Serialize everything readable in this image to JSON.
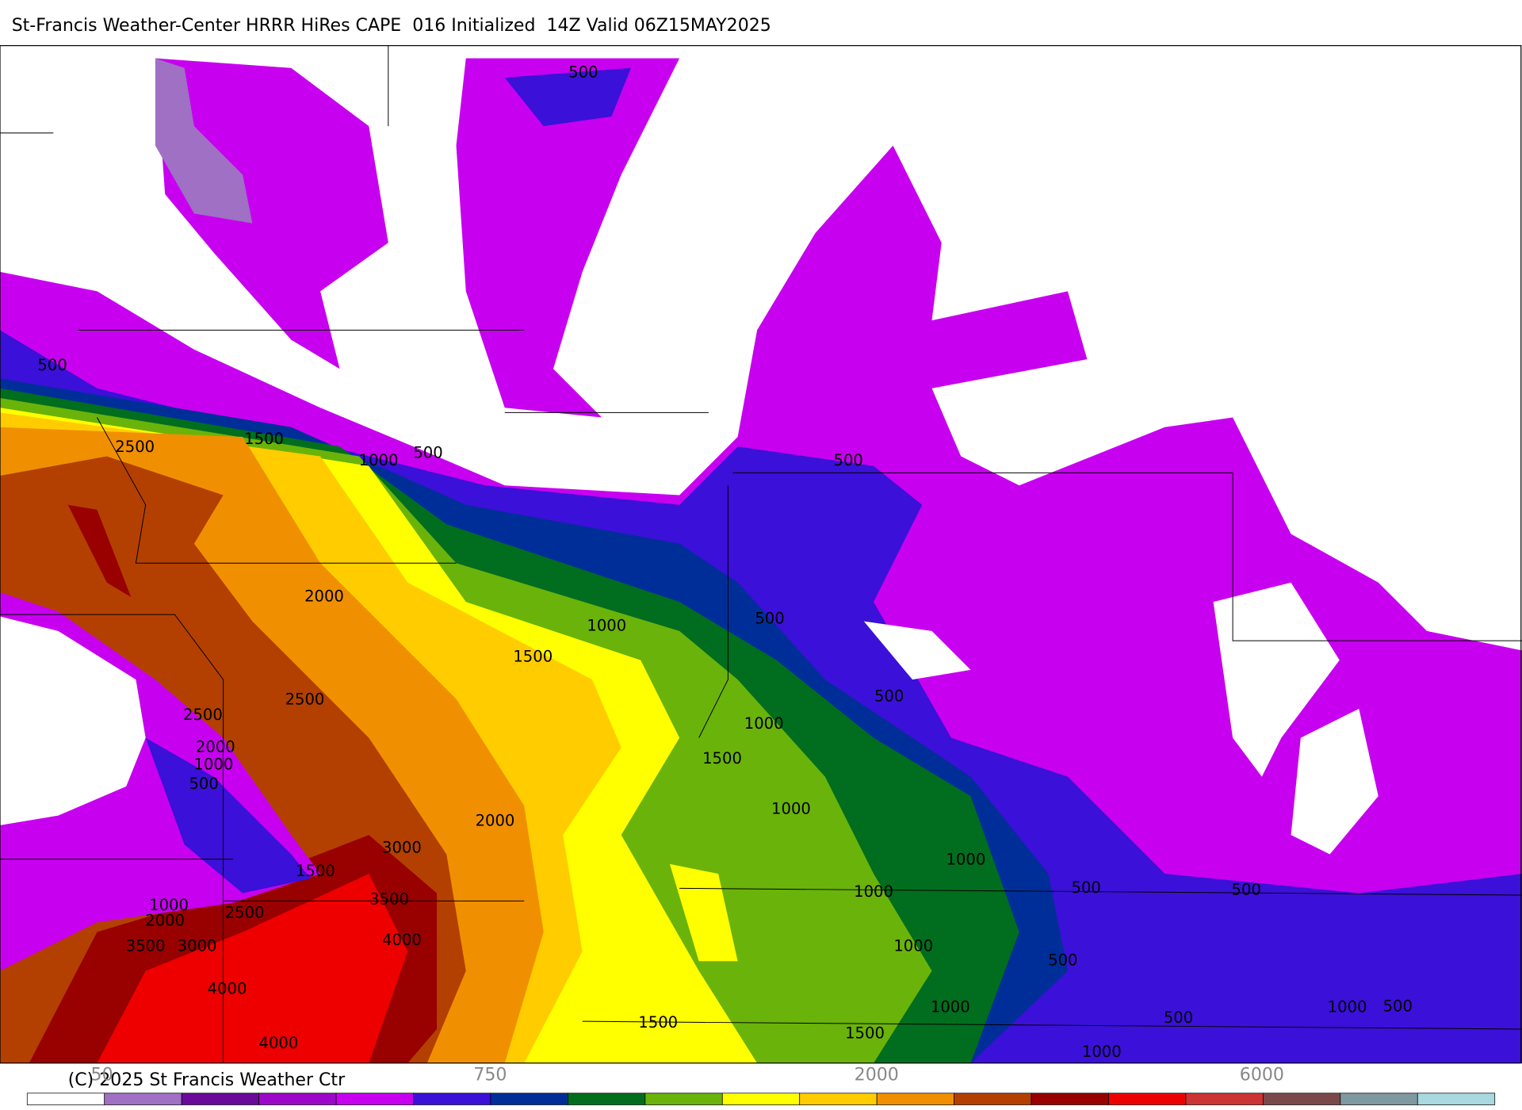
{
  "header": {
    "title": "St-Francis Weather-Center HRRR HiRes CAPE  016 Initialized  14Z Valid 06Z15MAY2025"
  },
  "map": {
    "contour_labels": [
      "500",
      "500",
      "2500",
      "1500",
      "1000",
      "500",
      "500",
      "2000",
      "1000",
      "500",
      "1500",
      "2500",
      "500",
      "2500",
      "1000",
      "2000",
      "1000",
      "1500",
      "500",
      "1000",
      "2000",
      "3000",
      "1000",
      "1500",
      "500",
      "500",
      "1000",
      "3500",
      "1000",
      "2500",
      "2000",
      "1000",
      "3500",
      "3000",
      "4000",
      "500",
      "4000",
      "1000",
      "1000",
      "500",
      "500",
      "1500",
      "1500",
      "4000",
      "1000"
    ]
  },
  "colorbar": {
    "colors": [
      "#ffffff",
      "#9f70c4",
      "#6a0a99",
      "#9c08c8",
      "#c800f0",
      "#3b10d8",
      "#002e99",
      "#006e1e",
      "#6ab30a",
      "#ffff00",
      "#ffcc00",
      "#f09000",
      "#b34000",
      "#990000",
      "#ee0000",
      "#cc3333",
      "#7a4a4a",
      "#7f99a0",
      "#a8d8e0"
    ],
    "labels": [
      "50",
      "750",
      "2000",
      "6000"
    ]
  },
  "footer": {
    "copyright": "(C) 2025 St Francis Weather Ctr"
  }
}
